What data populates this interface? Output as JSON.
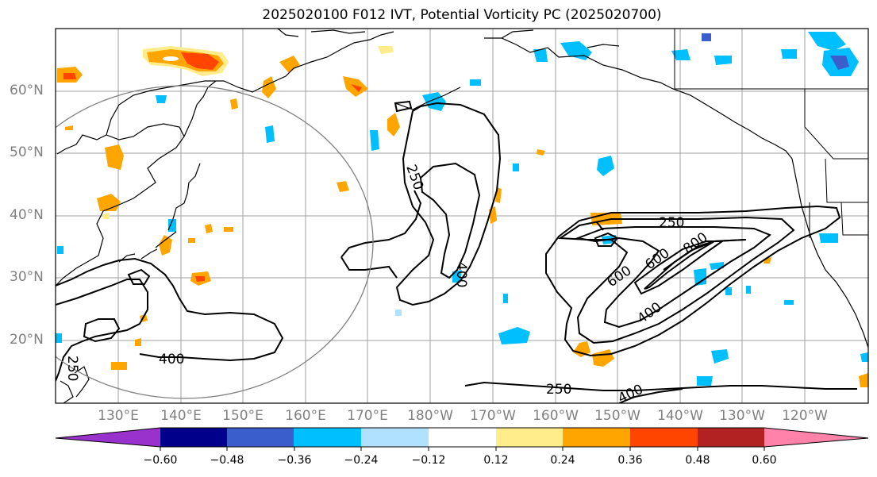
{
  "title": "2025020100 F012 IVT, Potential Vorticity PC (2025020700)",
  "lat_labels": [
    "60°N",
    "50°N",
    "40°N",
    "30°N",
    "20°N"
  ],
  "lon_labels": [
    "130°E",
    "140°E",
    "150°E",
    "160°E",
    "170°E",
    "180°W",
    "170°W",
    "160°W",
    "150°W",
    "140°W",
    "130°W",
    "120°W"
  ],
  "contour_labels": [
    "250",
    "400",
    "250",
    "600",
    "800",
    "600",
    "400",
    "400",
    "250",
    "400",
    "250"
  ],
  "colorbar": {
    "ticks": [
      "−0.60",
      "−0.48",
      "−0.36",
      "−0.24",
      "−0.12",
      "0.12",
      "0.24",
      "0.36",
      "0.48",
      "0.60"
    ],
    "colors": [
      "#9932cc",
      "#00008b",
      "#3a5fcd",
      "#00bfff",
      "#b0e2ff",
      "#ffffff",
      "#ffec8b",
      "#ffa500",
      "#ff4500",
      "#b22222",
      "#ff82ab"
    ]
  }
}
